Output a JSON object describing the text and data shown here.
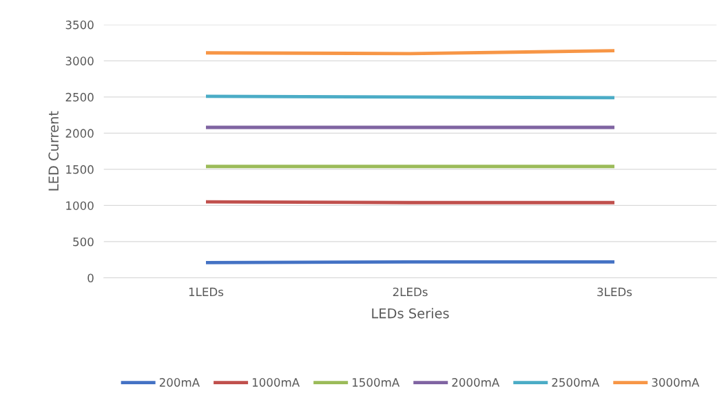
{
  "chart_data": {
    "type": "line",
    "xlabel": "LEDs Series",
    "ylabel": "LED Current",
    "categories": [
      "1LEDs",
      "2LEDs",
      "3LEDs"
    ],
    "series": [
      {
        "name": "200mA",
        "color": "#4472c4",
        "values": [
          210,
          220,
          220
        ]
      },
      {
        "name": "1000mA",
        "color": "#c0504d",
        "values": [
          1050,
          1040,
          1040
        ]
      },
      {
        "name": "1500mA",
        "color": "#9bbb59",
        "values": [
          1540,
          1540,
          1540
        ]
      },
      {
        "name": "2000mA",
        "color": "#8064a2",
        "values": [
          2080,
          2080,
          2080
        ]
      },
      {
        "name": "2500mA",
        "color": "#4bacc6",
        "values": [
          2510,
          2500,
          2490
        ]
      },
      {
        "name": "3000mA",
        "color": "#f79646",
        "values": [
          3110,
          3100,
          3140
        ]
      }
    ],
    "ylim": [
      0,
      3500
    ],
    "yticks": [
      0,
      500,
      1000,
      1500,
      2000,
      2500,
      3000,
      3500
    ],
    "grid": "y",
    "legend": "bottom",
    "marker": "none",
    "line_style": "solid"
  }
}
